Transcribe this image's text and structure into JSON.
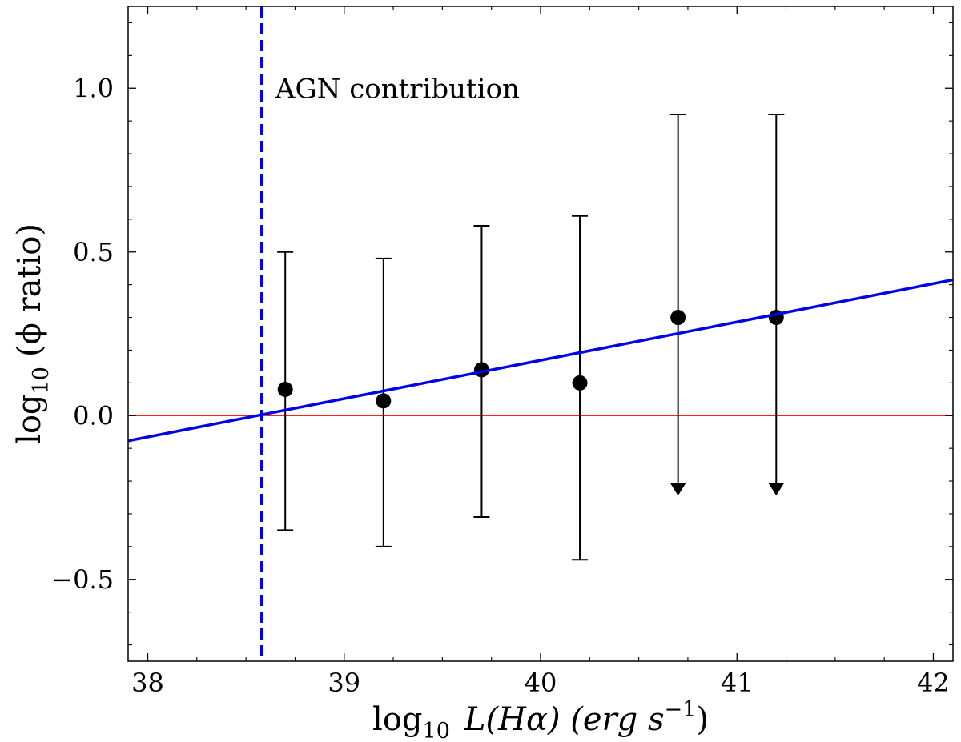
{
  "chart_data": {
    "type": "scatter",
    "xlabel": {
      "prefix": "log",
      "sub": "10",
      "main": "L(Hα) (erg s",
      "sup": "−1",
      "close": ")"
    },
    "ylabel": {
      "prefix": "log",
      "sub": "10",
      "main": "(ϕ ratio)"
    },
    "xlim": [
      37.9,
      42.1
    ],
    "ylim": [
      -0.75,
      1.25
    ],
    "xticks": [
      38,
      39,
      40,
      41,
      42
    ],
    "xtick_labels": [
      "38",
      "39",
      "40",
      "41",
      "42"
    ],
    "yticks": [
      -0.5,
      0.0,
      0.5,
      1.0
    ],
    "ytick_labels": [
      "−0.5",
      "0.0",
      "0.5",
      "1.0"
    ],
    "grid": false,
    "points": [
      {
        "x": 38.7,
        "y": 0.08,
        "yerr_low": -0.35,
        "yerr_high": 0.5,
        "upper_limit": false
      },
      {
        "x": 39.2,
        "y": 0.045,
        "yerr_low": -0.4,
        "yerr_high": 0.48,
        "upper_limit": false
      },
      {
        "x": 39.7,
        "y": 0.14,
        "yerr_low": -0.31,
        "yerr_high": 0.58,
        "upper_limit": false
      },
      {
        "x": 40.2,
        "y": 0.1,
        "yerr_low": -0.44,
        "yerr_high": 0.61,
        "upper_limit": false
      },
      {
        "x": 40.7,
        "y": 0.3,
        "yerr_low": -0.22,
        "yerr_high": 0.92,
        "upper_limit": true
      },
      {
        "x": 41.2,
        "y": 0.3,
        "yerr_low": -0.22,
        "yerr_high": 0.92,
        "upper_limit": true
      }
    ],
    "fit_line": {
      "x": [
        37.9,
        42.1
      ],
      "y": [
        -0.077,
        0.415
      ],
      "color": "#0000ee"
    },
    "reference_line": {
      "y": 0.0,
      "color": "#ff0000"
    },
    "agn_line": {
      "x": 38.58,
      "color": "#0000ee",
      "style": "dashed"
    },
    "annotation": {
      "text": "AGN contribution",
      "x": 38.65,
      "y": 0.97
    }
  }
}
